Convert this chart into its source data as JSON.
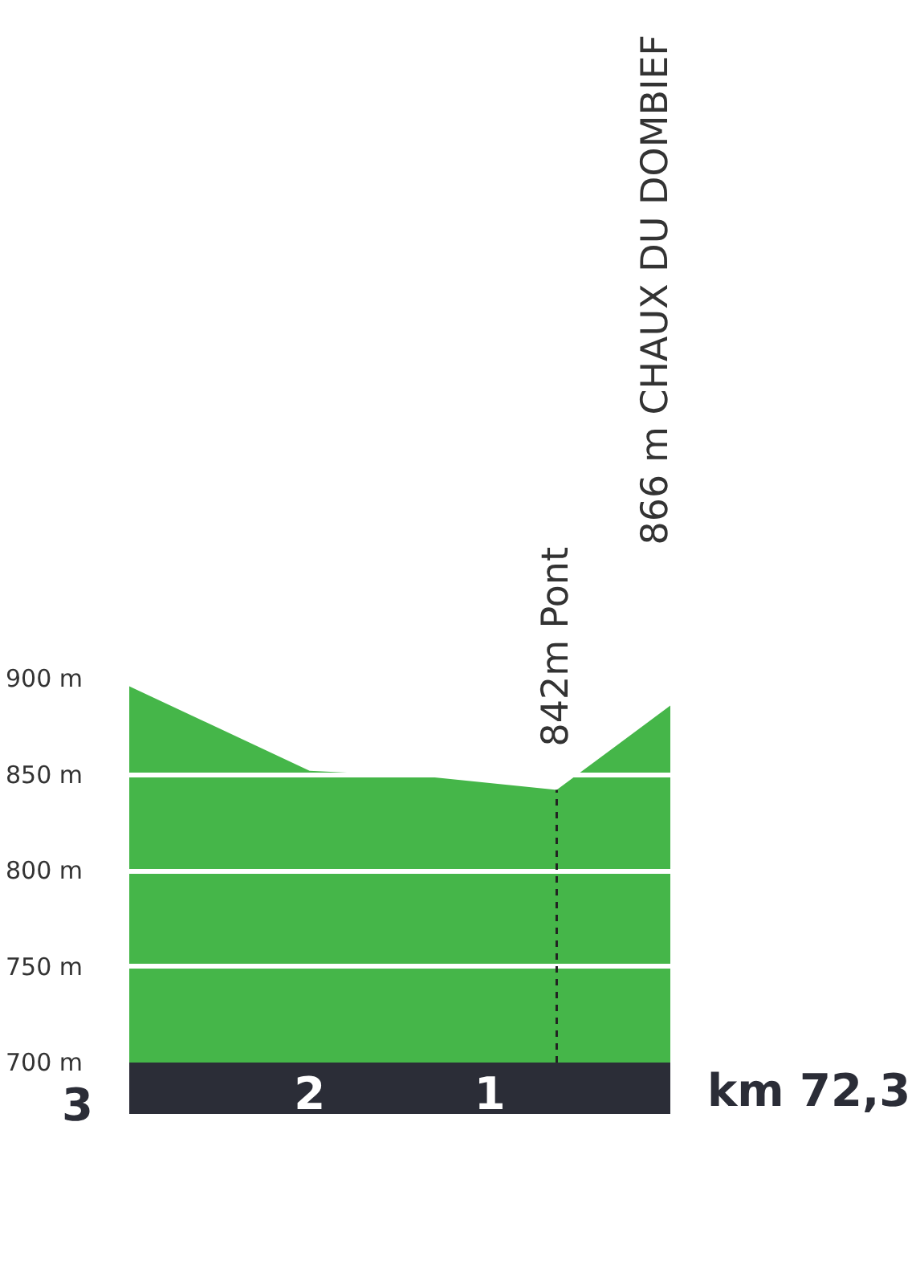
{
  "chart_data": {
    "type": "area",
    "x": [
      3,
      2.0,
      1.35,
      0.63,
      0
    ],
    "values": [
      896,
      852,
      849,
      842,
      886
    ],
    "color": "#45b649",
    "xlim": [
      3,
      0
    ],
    "xticks": [
      2,
      1
    ],
    "ylim": [
      700,
      900
    ],
    "yticks": [
      {
        "value": 700,
        "label": "700 m"
      },
      {
        "value": 750,
        "label": "750 m"
      },
      {
        "value": 800,
        "label": "800 m"
      },
      {
        "value": 850,
        "label": "850 m"
      },
      {
        "value": 900,
        "label": "900 m"
      }
    ],
    "grid": "y",
    "ref_lines": [
      {
        "axis": "x",
        "value": 0.63,
        "label": "842m Pont",
        "color": "#222222",
        "line_style": "dashed"
      }
    ],
    "annotations": [
      "3",
      "km 72,3",
      "866 m CHAUX DU DOMBIEF"
    ]
  }
}
